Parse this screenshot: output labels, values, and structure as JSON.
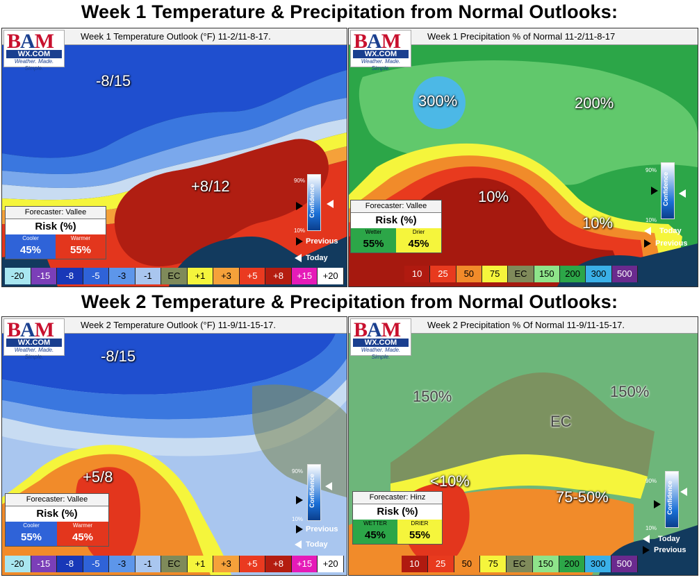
{
  "titles": {
    "week1": "Week 1 Temperature & Precipitation from Normal Outlooks:",
    "week2": "Week 2 Temperature & Precipitation from Normal Outlooks:"
  },
  "logo": {
    "bam_b": "B",
    "bam_a": "A",
    "bam_m": "M",
    "wx": "WX.COM",
    "tagline": "Weather. Made. Simple."
  },
  "panels": {
    "w1_temp": {
      "header": "Week 1 Temperature Outlook (°F) 11-2/11-8-17.",
      "labels": [
        "-8/15",
        "+8/12"
      ],
      "forecaster": "Forecaster: Vallee",
      "risk_title": "Risk (%)",
      "left_cap": "Cooler",
      "left_val": "45%",
      "right_cap": "Warmer",
      "right_val": "55%"
    },
    "w1_precip": {
      "header": "Week 1 Precipitation % of Normal 11-2/11-8-17",
      "labels": [
        "300%",
        "200%",
        "10%",
        "10%"
      ],
      "forecaster": "Forecaster: Vallee",
      "risk_title": "Risk (%)",
      "left_cap": "Wetter",
      "left_val": "55%",
      "right_cap": "Drier",
      "right_val": "45%"
    },
    "w2_temp": {
      "header": "Week 2 Temperature Outlook (°F) 11-9/11-15-17.",
      "labels": [
        "-8/15",
        "+5/8"
      ],
      "forecaster": "Forecaster: Vallee",
      "risk_title": "Risk (%)",
      "left_cap": "Cooler",
      "left_val": "55%",
      "right_cap": "Warmer",
      "right_val": "45%"
    },
    "w2_precip": {
      "header": "Week 2 Precipitation % Of Normal 11-9/11-15-17.",
      "labels": [
        "150%",
        "150%",
        "EC",
        "<10%",
        "75-50%"
      ],
      "forecaster": "Forecaster: Hinz",
      "risk_title": "Risk (%)",
      "left_cap": "WETTER",
      "left_val": "45%",
      "right_cap": "DRIER",
      "right_val": "55%"
    }
  },
  "confidence": {
    "label": "Confidence",
    "high": "90%",
    "low": "10%",
    "previous": "Previous",
    "today": "Today"
  },
  "legends": {
    "temp": [
      {
        "t": "-20",
        "c": "#a8e6f0"
      },
      {
        "t": "-15",
        "c": "#7b3fb8"
      },
      {
        "t": "-8",
        "c": "#1838b8"
      },
      {
        "t": "-5",
        "c": "#2f63d8"
      },
      {
        "t": "-3",
        "c": "#5d96ea"
      },
      {
        "t": "-1",
        "c": "#a9c6ef"
      },
      {
        "t": "EC",
        "c": "#7f8a5a"
      },
      {
        "t": "+1",
        "c": "#f5f53c"
      },
      {
        "t": "+3",
        "c": "#f5a13a"
      },
      {
        "t": "+5",
        "c": "#ea3a20"
      },
      {
        "t": "+8",
        "c": "#b41d10"
      },
      {
        "t": "+15",
        "c": "#e51bb8"
      },
      {
        "t": "+20",
        "c": "#ffffff"
      }
    ],
    "precip": [
      {
        "t": "10",
        "c": "#b01a10"
      },
      {
        "t": "25",
        "c": "#e83a1e"
      },
      {
        "t": "50",
        "c": "#f18b2a"
      },
      {
        "t": "75",
        "c": "#f5f53c"
      },
      {
        "t": "EC",
        "c": "#7f8a5a"
      },
      {
        "t": "150",
        "c": "#8ee48a"
      },
      {
        "t": "200",
        "c": "#2ca648"
      },
      {
        "t": "300",
        "c": "#3ab0e8"
      },
      {
        "t": "500",
        "c": "#6a2a8e"
      }
    ]
  }
}
